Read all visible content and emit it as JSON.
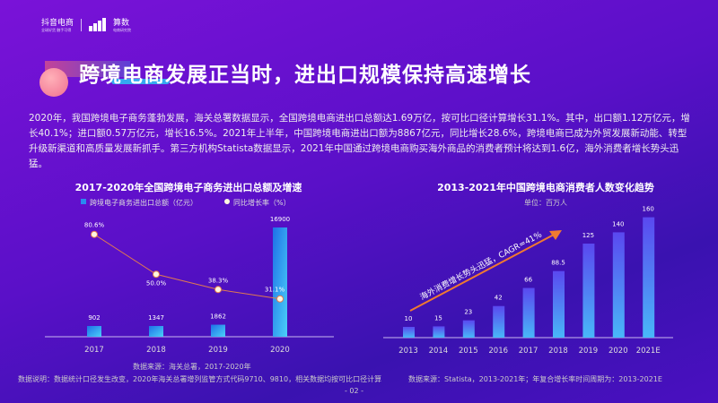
{
  "logo": {
    "brand1": "抖音电商",
    "brand1_sub": "全球好货 触手可得",
    "brand2": "算数",
    "brand2_sub": "电商研究院"
  },
  "title": "跨境电商发展正当时，进出口规模保持高速增长",
  "paragraph": "2020年，我国跨境电子商务蓬勃发展，海关总署数据显示，全国跨境电商进出口总额达1.69万亿，按可比口径计算增长31.1%。其中，出口额1.12万亿元，增长40.1%；进口额0.57万亿元，增长16.5%。2021年上半年，中国跨境电商进出口额为8867亿元，同比增长28.6%，跨境电商已成为外贸发展新动能、转型升级新渠道和高质量发展新抓手。第三方机构Statista数据显示，2021年中国通过跨境电商购买海外商品的消费者预计将达到1.6亿，海外消费者增长势头迅猛。",
  "page_number": "- 02 -",
  "colors": {
    "bar": "#2a8af0",
    "line": "#e07a50",
    "point": "#fff6e0",
    "arrow": "#f07a30",
    "bar2": "#5a5af0"
  },
  "chart_data": [
    {
      "type": "bar+line",
      "title": "2017-2020年全国跨境电子商务进出口总额及增速",
      "categories": [
        "2017",
        "2018",
        "2019",
        "2020"
      ],
      "series": [
        {
          "name": "跨境电子商务进出口总额（亿元）",
          "type": "bar",
          "values": [
            902,
            1347,
            1862,
            16900
          ],
          "labels": [
            "902",
            "1347",
            "1862",
            "16900"
          ]
        },
        {
          "name": "同比增长率（%）",
          "type": "line",
          "values": [
            80.6,
            50.0,
            38.3,
            31.1
          ],
          "labels": [
            "80.6%",
            "50.0%",
            "38.3%",
            "31.1%"
          ]
        }
      ],
      "source": "数据来源：海关总署，2017-2020年",
      "note": "数据说明：数据统计口径发生改变，2020年海关总署增列监管方式代码9710、9810，相关数据均按可比口径计算"
    },
    {
      "type": "bar",
      "title": "2013-2021年中国跨境电商消费者人数变化趋势",
      "unit": "单位：百万人",
      "categories": [
        "2013",
        "2014",
        "2015",
        "2016",
        "2017",
        "2018",
        "2019",
        "2020",
        "2021E"
      ],
      "values": [
        10,
        15,
        23,
        42,
        66,
        88.5,
        125,
        140,
        160
      ],
      "labels": [
        "10",
        "15",
        "23",
        "42",
        "66",
        "88.5",
        "125",
        "140",
        "160"
      ],
      "annotation": "海外消费增长势头迅猛，CAGR=41%",
      "source": "数据来源：Statista，2013-2021年；年复合增长率时间周期为：2013-2021E"
    }
  ]
}
